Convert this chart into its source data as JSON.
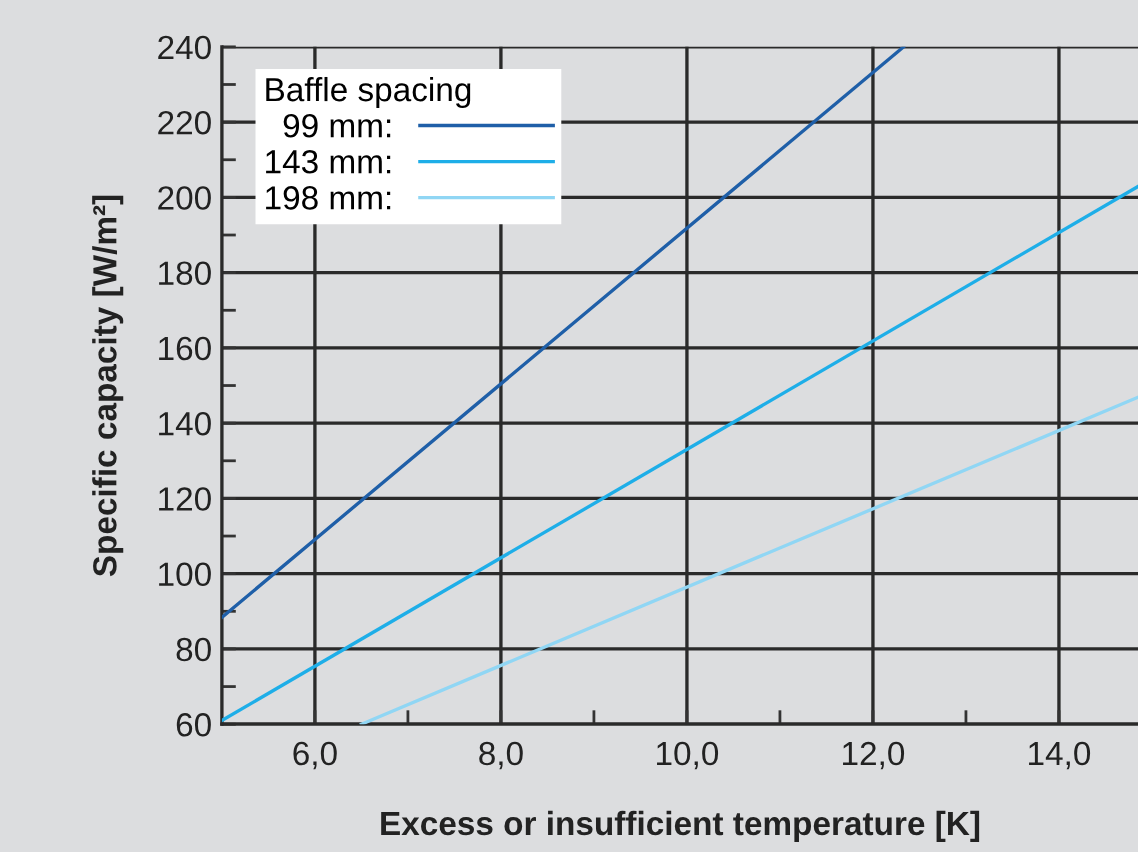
{
  "chart_data": {
    "type": "line",
    "xlabel": "Excess or insufficient temperature [K]",
    "ylabel": "Specific capacity [W/m²]",
    "legend_title": "Baffle spacing",
    "legend": "top left",
    "xlim": [
      5,
      14.85
    ],
    "ylim": [
      60,
      240
    ],
    "xticks": [
      {
        "value": 6,
        "label": "6,0"
      },
      {
        "value": 7,
        "label": null
      },
      {
        "value": 8,
        "label": "8,0"
      },
      {
        "value": 9,
        "label": null
      },
      {
        "value": 10,
        "label": "10,0"
      },
      {
        "value": 11,
        "label": null
      },
      {
        "value": 12,
        "label": "12,0"
      },
      {
        "value": 13,
        "label": null
      },
      {
        "value": 14,
        "label": "14,0"
      }
    ],
    "yticks": [
      60,
      {
        "value": 70,
        "label": null
      },
      80,
      {
        "value": 90,
        "label": null
      },
      100,
      {
        "value": 110,
        "label": null
      },
      120,
      {
        "value": 130,
        "label": null
      },
      140,
      {
        "value": 150,
        "label": null
      },
      160,
      {
        "value": 170,
        "label": null
      },
      180,
      {
        "value": 190,
        "label": null
      },
      200,
      {
        "value": 210,
        "label": null
      },
      220,
      {
        "value": 230,
        "label": null
      },
      240
    ],
    "grid": true,
    "marker": "none",
    "line_style": "solid",
    "series": [
      {
        "name": "99 mm:",
        "color": "#1f5fa8",
        "x": [
          5,
          12.33
        ],
        "values": [
          88.4,
          240
        ]
      },
      {
        "name": "143 mm:",
        "color": "#1eaee8",
        "x": [
          5,
          14.85
        ],
        "values": [
          61,
          202.9
        ]
      },
      {
        "name": "198 mm:",
        "color": "#90d6f4",
        "x": [
          6.5,
          14.85
        ],
        "values": [
          60,
          146.9
        ]
      }
    ]
  }
}
